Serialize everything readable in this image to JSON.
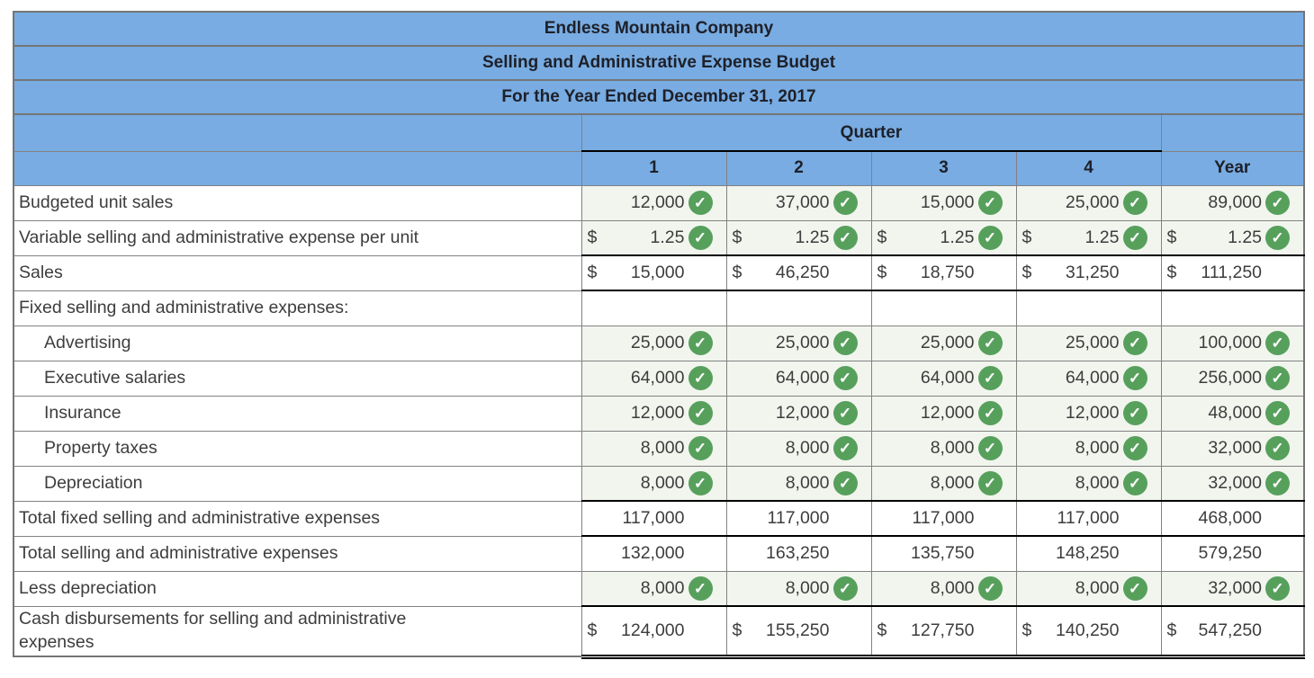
{
  "company": "Endless Mountain Company",
  "report_title": "Selling and Administrative Expense Budget",
  "period": "For the Year Ended December 31, 2017",
  "quarter_label": "Quarter",
  "columns": [
    "1",
    "2",
    "3",
    "4",
    "Year"
  ],
  "currency_symbol": "$",
  "check_glyph": "✓",
  "colors": {
    "header_blue": "#78ace2",
    "check_green": "#57a05c",
    "checked_cell_bg": "#f1f5ee",
    "grid_gray": "#828282"
  },
  "rows": [
    {
      "label": "Budgeted unit sales",
      "indent": false,
      "dollar": false,
      "check": true,
      "border": "none",
      "wrap": false,
      "values": [
        "12,000",
        "37,000",
        "15,000",
        "25,000",
        "89,000"
      ]
    },
    {
      "label": "Variable selling and administrative expense per unit",
      "indent": false,
      "dollar": true,
      "check": true,
      "border": "black",
      "wrap": false,
      "values": [
        "1.25",
        "1.25",
        "1.25",
        "1.25",
        "1.25"
      ]
    },
    {
      "label": "Sales",
      "indent": false,
      "dollar": true,
      "check": false,
      "border": "black",
      "wrap": false,
      "values": [
        "15,000",
        "46,250",
        "18,750",
        "31,250",
        "111,250"
      ]
    },
    {
      "label": "Fixed selling and administrative expenses:",
      "indent": false,
      "dollar": false,
      "check": false,
      "border": "none",
      "wrap": false,
      "values": [
        "",
        "",
        "",
        "",
        ""
      ]
    },
    {
      "label": "Advertising",
      "indent": true,
      "dollar": false,
      "check": true,
      "border": "none",
      "wrap": false,
      "values": [
        "25,000",
        "25,000",
        "25,000",
        "25,000",
        "100,000"
      ]
    },
    {
      "label": "Executive salaries",
      "indent": true,
      "dollar": false,
      "check": true,
      "border": "none",
      "wrap": false,
      "values": [
        "64,000",
        "64,000",
        "64,000",
        "64,000",
        "256,000"
      ]
    },
    {
      "label": "Insurance",
      "indent": true,
      "dollar": false,
      "check": true,
      "border": "none",
      "wrap": false,
      "values": [
        "12,000",
        "12,000",
        "12,000",
        "12,000",
        "48,000"
      ]
    },
    {
      "label": "Property taxes",
      "indent": true,
      "dollar": false,
      "check": true,
      "border": "none",
      "wrap": false,
      "values": [
        "8,000",
        "8,000",
        "8,000",
        "8,000",
        "32,000"
      ]
    },
    {
      "label": "Depreciation",
      "indent": true,
      "dollar": false,
      "check": true,
      "border": "black",
      "wrap": false,
      "values": [
        "8,000",
        "8,000",
        "8,000",
        "8,000",
        "32,000"
      ]
    },
    {
      "label": "Total fixed selling and administrative expenses",
      "indent": false,
      "dollar": false,
      "check": false,
      "border": "black",
      "wrap": false,
      "values": [
        "117,000",
        "117,000",
        "117,000",
        "117,000",
        "468,000"
      ]
    },
    {
      "label": "Total selling and administrative expenses",
      "indent": false,
      "dollar": false,
      "check": false,
      "border": "none",
      "wrap": false,
      "values": [
        "132,000",
        "163,250",
        "135,750",
        "148,250",
        "579,250"
      ]
    },
    {
      "label": "Less depreciation",
      "indent": false,
      "dollar": false,
      "check": true,
      "border": "black",
      "wrap": false,
      "values": [
        "8,000",
        "8,000",
        "8,000",
        "8,000",
        "32,000"
      ]
    },
    {
      "label": "Cash disbursements for selling and administrative expenses",
      "indent": false,
      "dollar": true,
      "check": false,
      "border": "double",
      "wrap": true,
      "values": [
        "124,000",
        "155,250",
        "127,750",
        "140,250",
        "547,250"
      ]
    }
  ]
}
